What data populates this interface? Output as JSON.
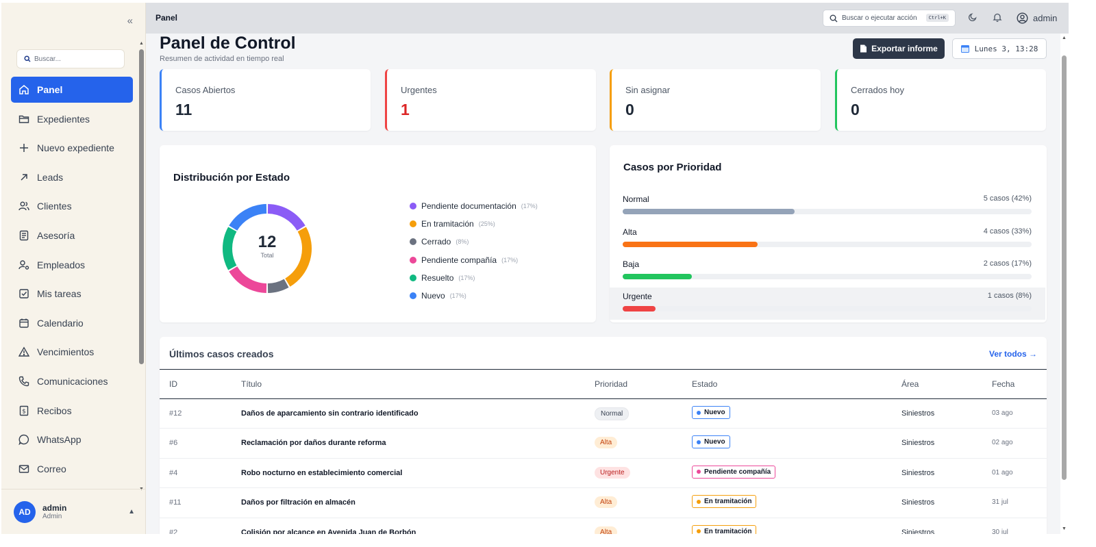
{
  "sidebar": {
    "search_placeholder": "Buscar...",
    "items": [
      {
        "label": "Panel",
        "icon": "home-icon",
        "active": true
      },
      {
        "label": "Expedientes",
        "icon": "folder-icon"
      },
      {
        "label": "Nuevo expediente",
        "icon": "plus-icon"
      },
      {
        "label": "Leads",
        "icon": "arrow-up-right-icon"
      },
      {
        "label": "Clientes",
        "icon": "users-icon"
      },
      {
        "label": "Asesoría",
        "icon": "document-icon"
      },
      {
        "label": "Empleados",
        "icon": "user-cog-icon"
      },
      {
        "label": "Mis tareas",
        "icon": "checkbox-icon"
      },
      {
        "label": "Calendario",
        "icon": "calendar-icon"
      },
      {
        "label": "Vencimientos",
        "icon": "warning-icon"
      },
      {
        "label": "Comunicaciones",
        "icon": "phone-icon"
      },
      {
        "label": "Recibos",
        "icon": "receipt-icon"
      },
      {
        "label": "WhatsApp",
        "icon": "chat-icon"
      },
      {
        "label": "Correo",
        "icon": "mail-icon"
      }
    ],
    "user": {
      "initials": "AD",
      "name": "admin",
      "role": "Admin"
    }
  },
  "topbar": {
    "title": "Panel",
    "search_placeholder": "Buscar o ejecutar acción",
    "shortcut": "Ctrl+K",
    "user": "admin"
  },
  "header": {
    "title": "Panel de Control",
    "subtitle": "Resumen de actividad en tiempo real",
    "export_label": "Exportar informe",
    "date_label": "Lunes 3, 13:28"
  },
  "stats": [
    {
      "label": "Casos Abiertos",
      "value": "11",
      "color": "#3b82f6",
      "value_color": "#1f2937"
    },
    {
      "label": "Urgentes",
      "value": "1",
      "color": "#ef4444",
      "value_color": "#dc2626"
    },
    {
      "label": "Sin asignar",
      "value": "0",
      "color": "#f59e0b",
      "value_color": "#1f2937"
    },
    {
      "label": "Cerrados hoy",
      "value": "0",
      "color": "#22c55e",
      "value_color": "#1f2937"
    }
  ],
  "status_chart": {
    "title": "Distribución por Estado",
    "total": "12",
    "total_label": "Total",
    "legend": [
      {
        "name": "Pendiente documentación",
        "pct": "(17%)",
        "color": "#8b5cf6"
      },
      {
        "name": "En tramitación",
        "pct": "(25%)",
        "color": "#f59e0b"
      },
      {
        "name": "Cerrado",
        "pct": "(8%)",
        "color": "#6b7280"
      },
      {
        "name": "Pendiente compañía",
        "pct": "(17%)",
        "color": "#ec4899"
      },
      {
        "name": "Resuelto",
        "pct": "(17%)",
        "color": "#10b981"
      },
      {
        "name": "Nuevo",
        "pct": "(17%)",
        "color": "#3b82f6"
      }
    ]
  },
  "chart_data": {
    "type": "pie",
    "categories": [
      "Pendiente documentación",
      "En tramitación",
      "Cerrado",
      "Pendiente compañía",
      "Resuelto",
      "Nuevo"
    ],
    "values": [
      2,
      3,
      1,
      2,
      2,
      2
    ],
    "title": "Distribución por Estado"
  },
  "priority": {
    "title": "Casos por Prioridad",
    "rows": [
      {
        "name": "Normal",
        "count": "5 casos (42%)",
        "fraction": 0.42,
        "color": "#94a3b8"
      },
      {
        "name": "Alta",
        "count": "4 casos (33%)",
        "fraction": 0.33,
        "color": "#f97316"
      },
      {
        "name": "Baja",
        "count": "2 casos (17%)",
        "fraction": 0.17,
        "color": "#22c55e"
      },
      {
        "name": "Urgente",
        "count": "1 casos (8%)",
        "fraction": 0.08,
        "color": "#ef4444"
      }
    ]
  },
  "recent": {
    "title": "Últimos casos creados",
    "link": "Ver todos →",
    "headers": [
      "ID",
      "Título",
      "Prioridad",
      "Estado",
      "Área",
      "Fecha"
    ],
    "rows": [
      {
        "id": "#12",
        "title": "Daños de aparcamiento sin contrario identificado",
        "priority": "Normal",
        "status": "Nuevo",
        "area": "Siniestros",
        "date": "03 ago"
      },
      {
        "id": "#6",
        "title": "Reclamación por daños durante reforma",
        "priority": "Alta",
        "status": "Nuevo",
        "area": "Siniestros",
        "date": "02 ago"
      },
      {
        "id": "#4",
        "title": "Robo nocturno en establecimiento comercial",
        "priority": "Urgente",
        "status": "Pendiente compañía",
        "area": "Siniestros",
        "date": "01 ago"
      },
      {
        "id": "#11",
        "title": "Daños por filtración en almacén",
        "priority": "Alta",
        "status": "En tramitación",
        "area": "Siniestros",
        "date": "31 jul"
      },
      {
        "id": "#2",
        "title": "Colisión por alcance en Avenida Juan de Borbón",
        "priority": "Alta",
        "status": "En tramitación",
        "area": "Siniestros",
        "date": "30 jul"
      }
    ]
  }
}
